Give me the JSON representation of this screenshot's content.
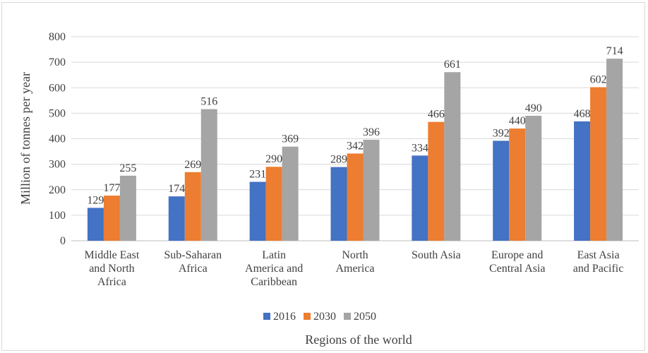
{
  "chart_data": {
    "type": "bar",
    "title": "",
    "xlabel": "Regions of the world",
    "ylabel": "Million of tonnes per year",
    "ylim": [
      0,
      800
    ],
    "yticks": [
      "0",
      "100",
      "200",
      "300",
      "400",
      "500",
      "600",
      "700",
      "800"
    ],
    "grid": true,
    "legend_position": "bottom",
    "categories": [
      [
        "Middle East",
        "and North",
        "Africa"
      ],
      [
        "Sub-Saharan",
        "Africa"
      ],
      [
        "Latin",
        "America and",
        "Caribbean"
      ],
      [
        "North",
        "America"
      ],
      [
        "South Asia"
      ],
      [
        "Europe and",
        "Central Asia"
      ],
      [
        "East Asia",
        "and Pacific"
      ]
    ],
    "series": [
      {
        "name": "2016",
        "color": "#4472c4",
        "values": [
          129,
          174,
          231,
          289,
          334,
          392,
          468
        ]
      },
      {
        "name": "2030",
        "color": "#ed7d31",
        "values": [
          177,
          269,
          290,
          342,
          466,
          440,
          602
        ]
      },
      {
        "name": "2050",
        "color": "#a5a5a5",
        "values": [
          255,
          516,
          369,
          396,
          661,
          490,
          714
        ]
      }
    ]
  }
}
